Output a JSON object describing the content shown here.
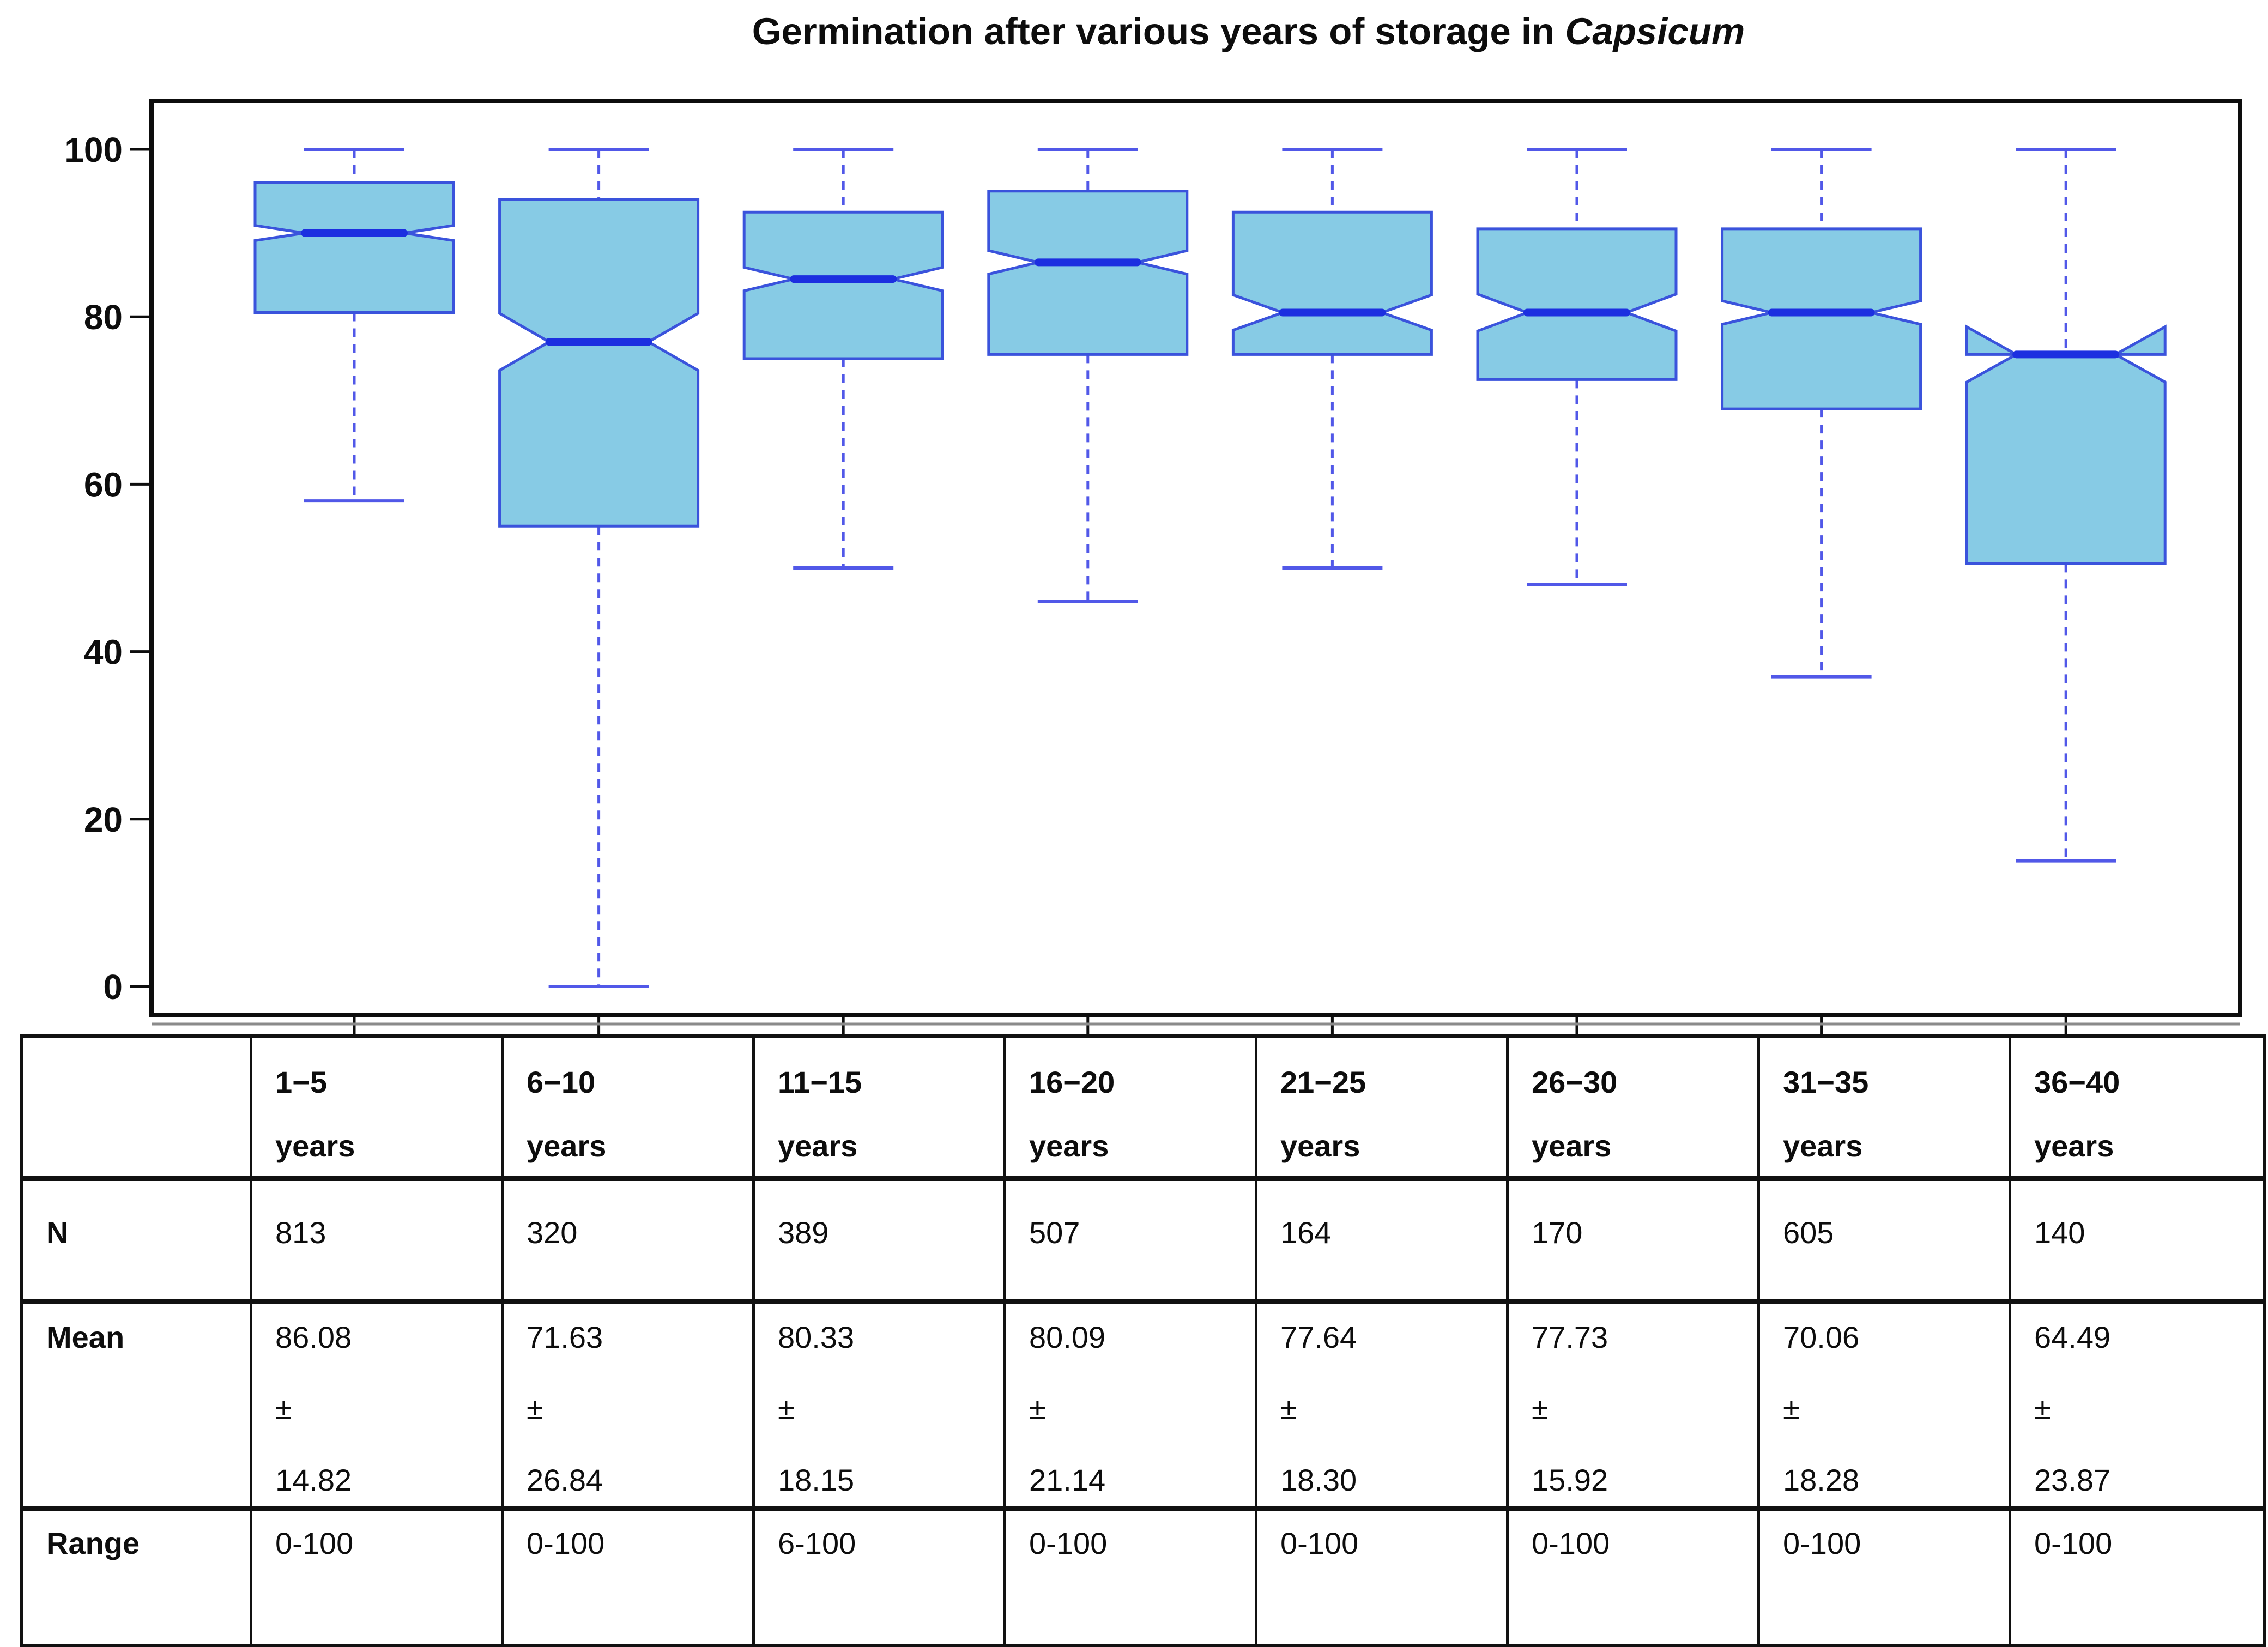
{
  "title": {
    "text": "Germination after various years of storage in",
    "emphasis": "Capsicum"
  },
  "chart_data": {
    "type": "boxplot",
    "title": "Germination after various years of storage in Capsicum",
    "categories": [
      "1−5 years",
      "6−10 years",
      "11−15 years",
      "16−20 years",
      "21−25 years",
      "26−30 years",
      "31−35 years",
      "36−40 years"
    ],
    "ylim": [
      0,
      100
    ],
    "yticks": [
      0,
      20,
      40,
      60,
      80,
      100
    ],
    "grid": false,
    "boxes": [
      {
        "category": "1−5 years",
        "whisker_low": 58,
        "q1": 80.5,
        "median": 90,
        "q3": 96,
        "whisker_high": 100,
        "notch_low": 89.1,
        "notch_high": 90.9
      },
      {
        "category": "6−10 years",
        "whisker_low": 0,
        "q1": 55,
        "median": 77,
        "q3": 94,
        "whisker_high": 100,
        "notch_low": 73.6,
        "notch_high": 80.4
      },
      {
        "category": "11−15 years",
        "whisker_low": 50,
        "q1": 75,
        "median": 84.5,
        "q3": 92.5,
        "whisker_high": 100,
        "notch_low": 83.1,
        "notch_high": 85.9
      },
      {
        "category": "16−20 years",
        "whisker_low": 46,
        "q1": 75.5,
        "median": 86.5,
        "q3": 95,
        "whisker_high": 100,
        "notch_low": 85.1,
        "notch_high": 87.9
      },
      {
        "category": "21−25 years",
        "whisker_low": 50,
        "q1": 75.5,
        "median": 80.5,
        "q3": 92.5,
        "whisker_high": 100,
        "notch_low": 78.4,
        "notch_high": 82.6
      },
      {
        "category": "26−30 years",
        "whisker_low": 48,
        "q1": 72.5,
        "median": 80.5,
        "q3": 90.5,
        "whisker_high": 100,
        "notch_low": 78.3,
        "notch_high": 82.7
      },
      {
        "category": "31−35 years",
        "whisker_low": 37,
        "q1": 69,
        "median": 80.5,
        "q3": 90.5,
        "whisker_high": 100,
        "notch_low": 79.1,
        "notch_high": 81.9
      },
      {
        "category": "36−40 years",
        "whisker_low": 15,
        "q1": 50.5,
        "median": 75.5,
        "q3": 75.5,
        "whisker_high": 100,
        "notch_low": 72.2,
        "notch_high": 78.8
      }
    ]
  },
  "table": {
    "corner": "",
    "row_labels": [
      "N",
      "Mean",
      "Range"
    ],
    "columns": [
      {
        "header_line1": "1−5",
        "header_line2": "years",
        "n": "813",
        "mean": "86.08",
        "plus_minus": "±",
        "sd": "14.82",
        "range": "0-100"
      },
      {
        "header_line1": "6−10",
        "header_line2": "years",
        "n": "320",
        "mean": "71.63",
        "plus_minus": "±",
        "sd": "26.84",
        "range": "0-100"
      },
      {
        "header_line1": "11−15",
        "header_line2": "years",
        "n": "389",
        "mean": "80.33",
        "plus_minus": "±",
        "sd": "18.15",
        "range": "6-100"
      },
      {
        "header_line1": "16−20",
        "header_line2": "years",
        "n": "507",
        "mean": "80.09",
        "plus_minus": "±",
        "sd": "21.14",
        "range": "0-100"
      },
      {
        "header_line1": "21−25",
        "header_line2": "years",
        "n": "164",
        "mean": "77.64",
        "plus_minus": "±",
        "sd": "18.30",
        "range": "0-100"
      },
      {
        "header_line1": "26−30",
        "header_line2": "years",
        "n": "170",
        "mean": "77.73",
        "plus_minus": "±",
        "sd": "15.92",
        "range": "0-100"
      },
      {
        "header_line1": "31−35",
        "header_line2": "years",
        "n": "605",
        "mean": "70.06",
        "plus_minus": "±",
        "sd": "18.28",
        "range": "0-100"
      },
      {
        "header_line1": "36−40",
        "header_line2": "years",
        "n": "140",
        "mean": "64.49",
        "plus_minus": "±",
        "sd": "23.87",
        "range": "0-100"
      }
    ]
  },
  "colors": {
    "box_fill": "#87CBE5",
    "box_border": "#3A53DC",
    "median": "#1C2FE0",
    "whisker": "#5158E8",
    "frame": "#0D0D0D",
    "axis_text": "#0D0D0D",
    "table_line": "#111111",
    "background": "#FFFFFF"
  }
}
